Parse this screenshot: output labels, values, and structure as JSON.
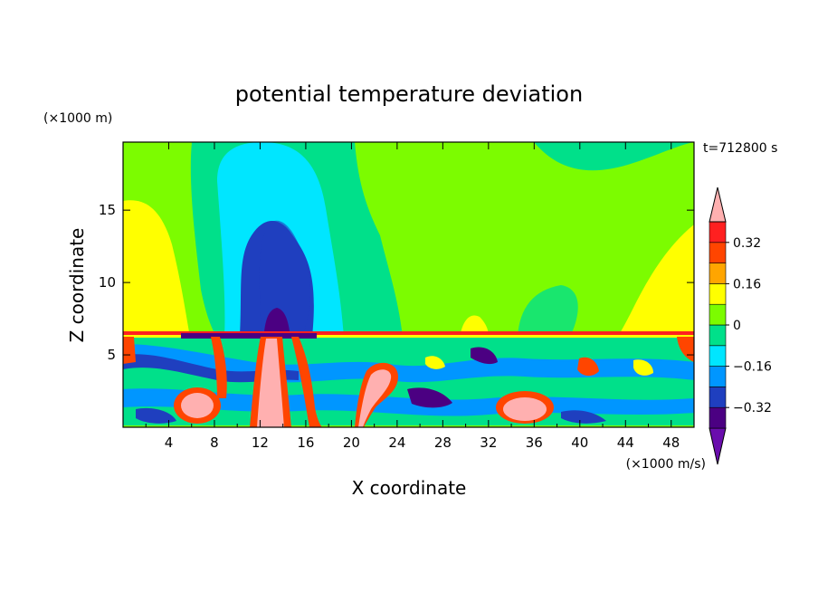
{
  "chart_data": {
    "type": "heatmap",
    "title": "potential temperature deviation",
    "time_label": "t=712800 s",
    "xlabel": "X coordinate",
    "ylabel": "Z coordinate",
    "x_unit": "(×1000 m/s)",
    "y_unit": "(×1000 m)",
    "xlim": [
      0,
      50
    ],
    "ylim": [
      0,
      19.7
    ],
    "x_ticks": [
      4,
      8,
      12,
      16,
      20,
      24,
      28,
      32,
      36,
      40,
      44,
      48
    ],
    "y_ticks": [
      5,
      10,
      15
    ],
    "colorbar": {
      "levels": [
        -0.4,
        -0.32,
        -0.24,
        -0.16,
        -0.08,
        0,
        0.08,
        0.16,
        0.24,
        0.32,
        0.4
      ],
      "labels": [
        "0.32",
        "0.16",
        "0",
        "−0.16",
        "−0.32"
      ],
      "label_values": [
        0.32,
        0.16,
        0,
        -0.16,
        -0.32
      ],
      "colors_bottom_to_top": [
        "#6a0dad",
        "#4b0082",
        "#1f3fbf",
        "#0096ff",
        "#00e6ff",
        "#00e08a",
        "#7cfc00",
        "#ffff00",
        "#ffa500",
        "#ff4500",
        "#ff2020",
        "#ffb0b0"
      ]
    }
  }
}
